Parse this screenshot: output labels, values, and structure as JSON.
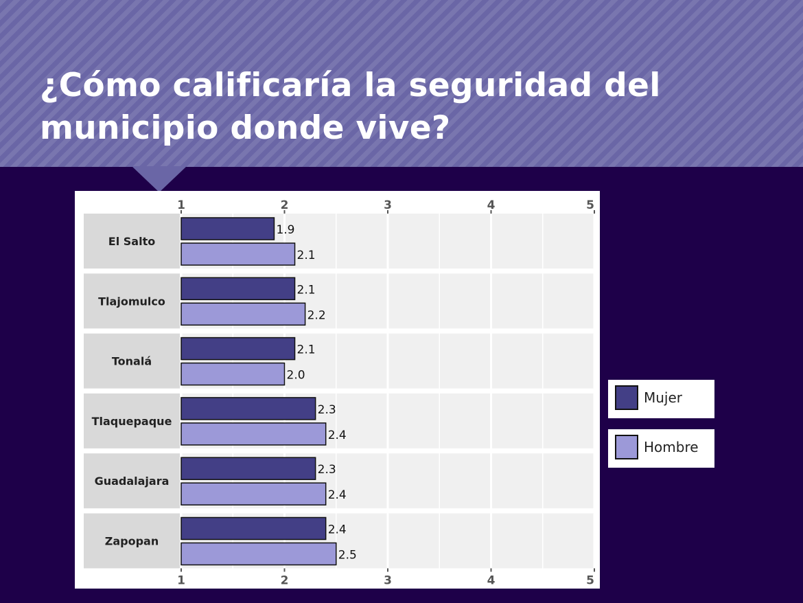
{
  "header": {
    "title": "¿Cómo calificaría la seguridad del municipio donde vive?"
  },
  "colors": {
    "background": "#1e0049",
    "header": "#6a66a6",
    "mujer": "#433f86",
    "hombre": "#9c99d8"
  },
  "chart_data": {
    "type": "bar",
    "orientation": "horizontal",
    "categories": [
      "El Salto",
      "Tlajomulco",
      "Tonalá",
      "Tlaquepaque",
      "Guadalajara",
      "Zapopan"
    ],
    "series": [
      {
        "name": "Mujer",
        "values": [
          1.9,
          2.1,
          2.1,
          2.3,
          2.3,
          2.4
        ],
        "labels": [
          "1.9",
          "2.1",
          "2.1",
          "2.3",
          "2.3",
          "2.4"
        ]
      },
      {
        "name": "Hombre",
        "values": [
          2.1,
          2.2,
          2.0,
          2.4,
          2.4,
          2.5
        ],
        "labels": [
          "2.1",
          "2.2",
          "2.0",
          "2.4",
          "2.4",
          "2.5"
        ]
      }
    ],
    "xlim": [
      1,
      5
    ],
    "xticks": [
      "1",
      "2",
      "3",
      "4",
      "5"
    ],
    "axis_ticks_top_and_bottom": true,
    "grid": true,
    "legend_position": "right"
  },
  "legend": {
    "items": [
      {
        "label": "Mujer",
        "color": "#433f86"
      },
      {
        "label": "Hombre",
        "color": "#9c99d8"
      }
    ]
  }
}
